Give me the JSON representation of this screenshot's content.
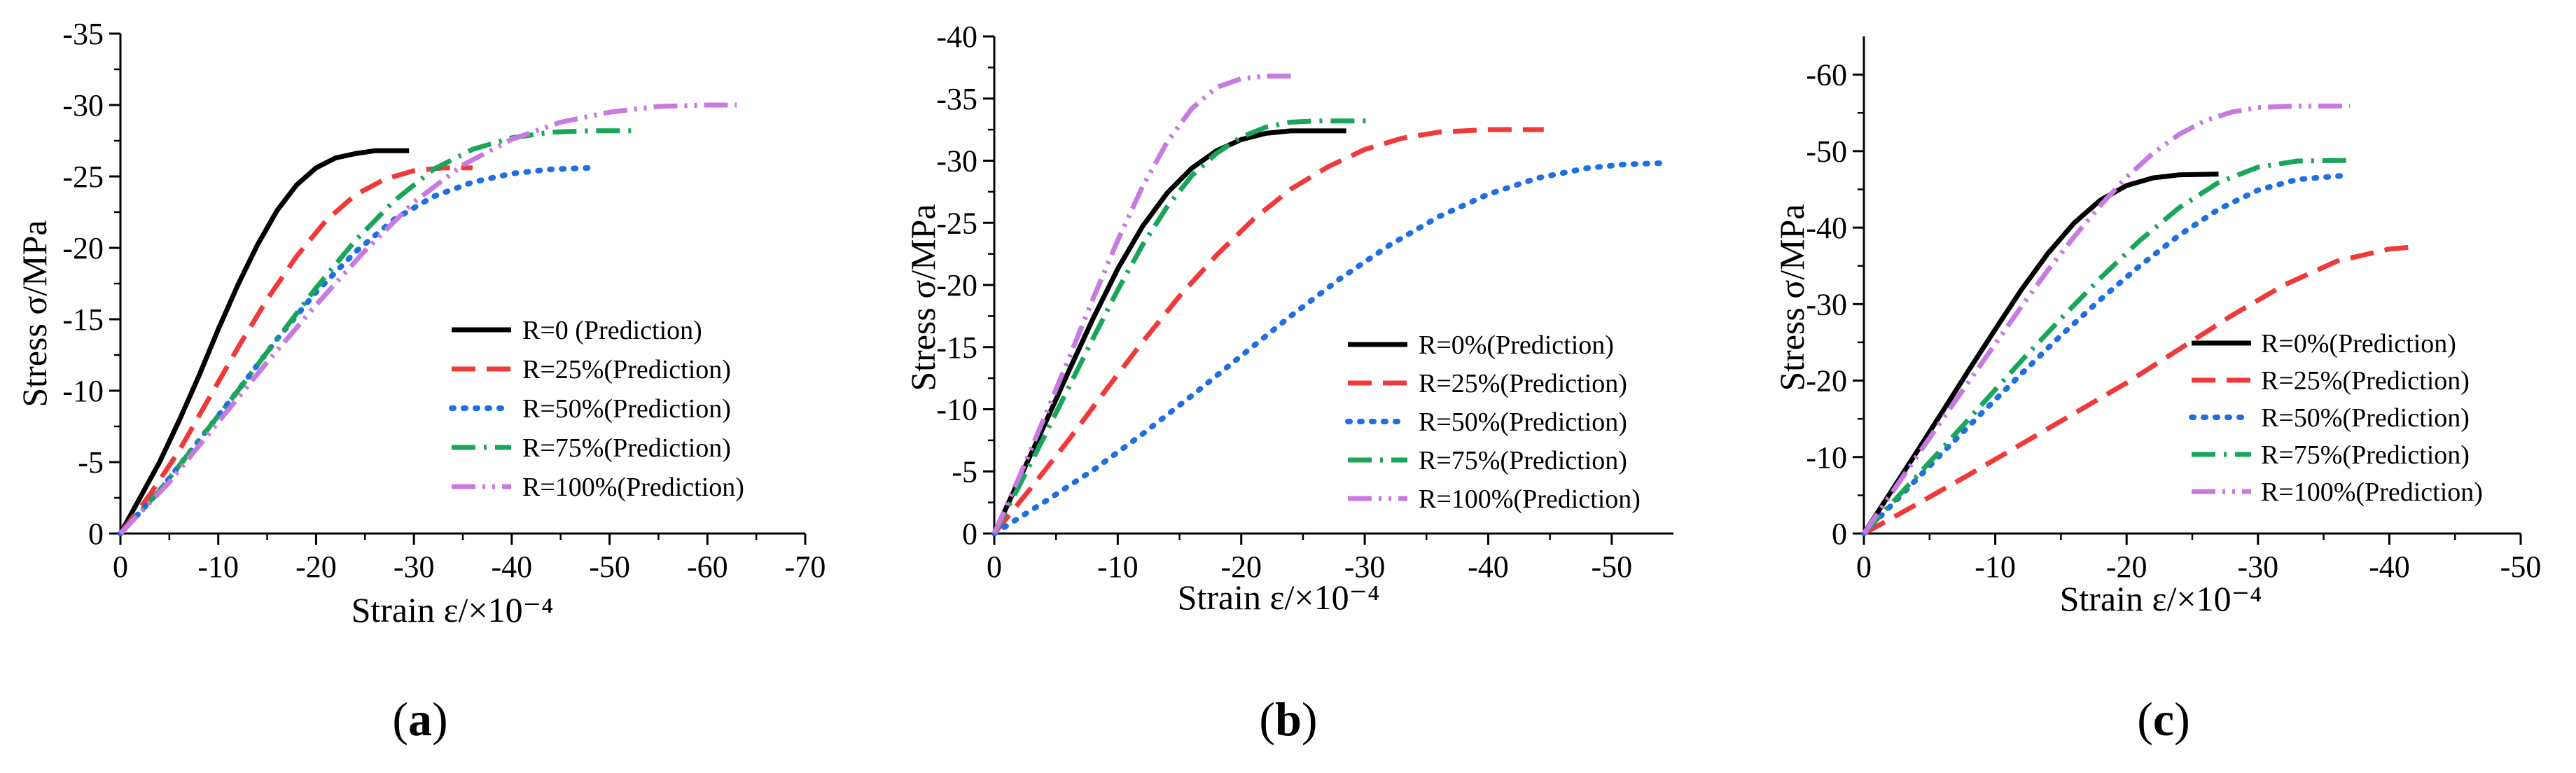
{
  "chart_data": [
    {
      "id": "a",
      "type": "line",
      "caption": "a",
      "xlabel": "Strain ε/×10⁻⁴",
      "ylabel": "Stress σ/MPa",
      "xlim": [
        0,
        -70
      ],
      "ylim": [
        0,
        -35
      ],
      "xticks": [
        0,
        -10,
        -20,
        -30,
        -40,
        -50,
        -60,
        -70
      ],
      "xtick_labels": [
        "0",
        "-10",
        "-20",
        "-30",
        "-40",
        "-50",
        "-60",
        "-70"
      ],
      "yticks": [
        0,
        -5,
        -10,
        -15,
        -20,
        -25,
        -30,
        -35
      ],
      "ytick_labels": [
        "0",
        "-5",
        "-10",
        "-15",
        "-20",
        "-25",
        "-30",
        "-35"
      ],
      "grid": false,
      "legend_position": "bottom-right",
      "series": [
        {
          "name": "R=0 (Prediction)",
          "color": "#000000",
          "dash": "solid",
          "x": [
            0,
            -2,
            -4,
            -6,
            -8,
            -10,
            -12,
            -14,
            -16,
            -18,
            -20,
            -22,
            -24,
            -26,
            -28,
            -29.5
          ],
          "y": [
            0,
            -2.5,
            -5.0,
            -7.9,
            -11.0,
            -14.3,
            -17.4,
            -20.2,
            -22.6,
            -24.4,
            -25.6,
            -26.3,
            -26.6,
            -26.8,
            -26.8,
            -26.8
          ]
        },
        {
          "name": "R=25%(Prediction)",
          "color": "#f03a3a",
          "dash": "dash",
          "x": [
            0,
            -3,
            -6,
            -9,
            -12,
            -15,
            -18,
            -21,
            -24,
            -27,
            -30,
            -33,
            -36
          ],
          "y": [
            0,
            -2.7,
            -5.8,
            -9.4,
            -13.0,
            -16.4,
            -19.4,
            -21.9,
            -23.7,
            -24.8,
            -25.4,
            -25.6,
            -25.6
          ]
        },
        {
          "name": "R=50%(Prediction)",
          "color": "#1f6fe0",
          "dash": "dot",
          "x": [
            0,
            -4,
            -8,
            -12,
            -16,
            -20,
            -24,
            -28,
            -32,
            -36,
            -40,
            -44,
            -48
          ],
          "y": [
            0,
            -3.0,
            -6.5,
            -10.0,
            -13.6,
            -16.9,
            -19.7,
            -22.0,
            -23.6,
            -24.6,
            -25.2,
            -25.5,
            -25.6
          ]
        },
        {
          "name": "R=75%(Prediction)",
          "color": "#1aa65a",
          "dash": "dashdot",
          "x": [
            0,
            -4,
            -8,
            -12,
            -16,
            -20,
            -24,
            -28,
            -32,
            -36,
            -40,
            -44,
            -48,
            -53
          ],
          "y": [
            0,
            -3.0,
            -6.5,
            -10.0,
            -13.6,
            -17.2,
            -20.5,
            -23.3,
            -25.5,
            -26.9,
            -27.7,
            -28.1,
            -28.2,
            -28.2
          ]
        },
        {
          "name": "R=100%(Prediction)",
          "color": "#c77ae0",
          "dash": "dashdotdot",
          "x": [
            0,
            -5,
            -10,
            -15,
            -20,
            -25,
            -30,
            -35,
            -40,
            -45,
            -50,
            -55,
            -60,
            -63
          ],
          "y": [
            0,
            -3.6,
            -7.8,
            -12.0,
            -16.0,
            -19.8,
            -23.2,
            -25.8,
            -27.6,
            -28.8,
            -29.5,
            -29.9,
            -30.0,
            -30.0
          ]
        }
      ]
    },
    {
      "id": "b",
      "type": "line",
      "caption": "b",
      "xlabel": "Strain ε/×10⁻⁴",
      "ylabel": "Stress σ/MPa",
      "xlim": [
        0,
        -55
      ],
      "ylim": [
        0,
        -40
      ],
      "xticks": [
        0,
        -10,
        -20,
        -30,
        -40,
        -50
      ],
      "xtick_labels": [
        "0",
        "-10",
        "-20",
        "-30",
        "-40",
        "-50"
      ],
      "yticks": [
        0,
        -5,
        -10,
        -15,
        -20,
        -25,
        -30,
        -35,
        -40
      ],
      "ytick_labels": [
        "0",
        "-5",
        "-10",
        "-15",
        "-20",
        "-25",
        "-30",
        "-35",
        "-40"
      ],
      "grid": false,
      "legend_position": "bottom-right",
      "series": [
        {
          "name": "R=0%(Prediction)",
          "color": "#000000",
          "dash": "solid",
          "x": [
            0,
            -2,
            -4,
            -6,
            -8,
            -10,
            -12,
            -14,
            -16,
            -18,
            -20,
            -22,
            -24,
            -26,
            -28.5
          ],
          "y": [
            0,
            -4.3,
            -8.6,
            -13.0,
            -17.3,
            -21.3,
            -24.7,
            -27.4,
            -29.4,
            -30.8,
            -31.7,
            -32.2,
            -32.4,
            -32.4,
            -32.4
          ]
        },
        {
          "name": "R=25%(Prediction)",
          "color": "#f03a3a",
          "dash": "dash",
          "x": [
            0,
            -3,
            -6,
            -9,
            -12,
            -15,
            -18,
            -21,
            -24,
            -27,
            -30,
            -33,
            -36,
            -40,
            -44.5
          ],
          "y": [
            0,
            -3.7,
            -7.5,
            -11.5,
            -15.4,
            -19.1,
            -22.4,
            -25.3,
            -27.7,
            -29.5,
            -30.9,
            -31.8,
            -32.3,
            -32.5,
            -32.5
          ]
        },
        {
          "name": "R=50%(Prediction)",
          "color": "#1f6fe0",
          "dash": "dot",
          "x": [
            0,
            -4,
            -8,
            -12,
            -16,
            -20,
            -24,
            -28,
            -32,
            -36,
            -40,
            -44,
            -48,
            -51,
            -54
          ],
          "y": [
            0,
            -2.5,
            -5.1,
            -8.0,
            -11.1,
            -14.3,
            -17.5,
            -20.5,
            -23.2,
            -25.5,
            -27.3,
            -28.6,
            -29.4,
            -29.7,
            -29.8
          ]
        },
        {
          "name": "R=75%(Prediction)",
          "color": "#1aa65a",
          "dash": "dashdot",
          "x": [
            0,
            -2,
            -4,
            -6,
            -8,
            -10,
            -12,
            -14,
            -16,
            -18,
            -20,
            -22,
            -24,
            -26,
            -28,
            -30.5
          ],
          "y": [
            0,
            -3.8,
            -7.7,
            -11.7,
            -15.7,
            -19.6,
            -23.2,
            -26.3,
            -28.8,
            -30.6,
            -31.9,
            -32.7,
            -33.1,
            -33.2,
            -33.2,
            -33.2
          ]
        },
        {
          "name": "R=100%(Prediction)",
          "color": "#c77ae0",
          "dash": "dashdotdot",
          "x": [
            0,
            -2,
            -4,
            -6,
            -8,
            -10,
            -12,
            -14,
            -16,
            -18,
            -20,
            -22,
            -24.5
          ],
          "y": [
            0,
            -4.5,
            -9.2,
            -14.0,
            -18.9,
            -23.6,
            -27.9,
            -31.5,
            -34.2,
            -35.9,
            -36.6,
            -36.8,
            -36.8
          ]
        }
      ]
    },
    {
      "id": "c",
      "type": "line",
      "caption": "c",
      "xlabel": "Strain ε/×10⁻⁴",
      "ylabel": "Stress σ/MPa",
      "xlim": [
        0,
        -50
      ],
      "ylim": [
        0,
        -65
      ],
      "xticks": [
        0,
        -10,
        -20,
        -30,
        -40,
        -50
      ],
      "xtick_labels": [
        "0",
        "-10",
        "-20",
        "-30",
        "-40",
        "-50"
      ],
      "yticks": [
        0,
        -10,
        -20,
        -30,
        -40,
        -50,
        -60
      ],
      "ytick_labels": [
        "0",
        "-10",
        "-20",
        "-30",
        "-40",
        "-50",
        "-60"
      ],
      "grid": false,
      "legend_position": "bottom-right",
      "series": [
        {
          "name": "R=0%(Prediction)",
          "color": "#000000",
          "dash": "solid",
          "x": [
            0,
            -2,
            -4,
            -6,
            -8,
            -10,
            -12,
            -14,
            -16,
            -18,
            -20,
            -22,
            -24,
            -27
          ],
          "y": [
            0,
            -5.3,
            -10.6,
            -16.0,
            -21.4,
            -26.7,
            -31.9,
            -36.6,
            -40.6,
            -43.6,
            -45.5,
            -46.5,
            -46.9,
            -47.0
          ]
        },
        {
          "name": "R=25%(Prediction)",
          "color": "#f03a3a",
          "dash": "dash",
          "x": [
            0,
            -4,
            -8,
            -12,
            -16,
            -20,
            -24,
            -28,
            -32,
            -36,
            -40,
            -42
          ],
          "y": [
            0,
            -3.8,
            -7.7,
            -11.7,
            -15.7,
            -19.7,
            -24.1,
            -28.5,
            -32.5,
            -35.6,
            -37.2,
            -37.5
          ]
        },
        {
          "name": "R=50%(Prediction)",
          "color": "#1f6fe0",
          "dash": "dot",
          "x": [
            0,
            -3,
            -6,
            -9,
            -12,
            -15,
            -18,
            -21,
            -24,
            -27,
            -30,
            -33,
            -36.5
          ],
          "y": [
            0,
            -5.3,
            -10.6,
            -15.8,
            -20.9,
            -25.9,
            -30.6,
            -35.0,
            -39.0,
            -42.4,
            -44.9,
            -46.3,
            -46.8
          ]
        },
        {
          "name": "R=75%(Prediction)",
          "color": "#1aa65a",
          "dash": "dashdot",
          "x": [
            0,
            -3,
            -6,
            -9,
            -12,
            -15,
            -18,
            -21,
            -24,
            -27,
            -30,
            -33,
            -37
          ],
          "y": [
            0,
            -5.6,
            -11.2,
            -16.9,
            -22.6,
            -28.1,
            -33.4,
            -38.3,
            -42.6,
            -45.9,
            -47.9,
            -48.7,
            -48.8
          ]
        },
        {
          "name": "R=100%(Prediction)",
          "color": "#c77ae0",
          "dash": "dashdotdot",
          "x": [
            0,
            -2,
            -4,
            -6,
            -8,
            -10,
            -12,
            -14,
            -16,
            -18,
            -20,
            -22,
            -24,
            -26,
            -28,
            -30,
            -33,
            -37
          ],
          "y": [
            0,
            -5.0,
            -10.0,
            -15.0,
            -19.9,
            -24.8,
            -29.7,
            -34.4,
            -38.8,
            -42.9,
            -46.6,
            -49.7,
            -52.2,
            -54.0,
            -55.1,
            -55.7,
            -55.9,
            -55.9
          ]
        }
      ]
    }
  ]
}
